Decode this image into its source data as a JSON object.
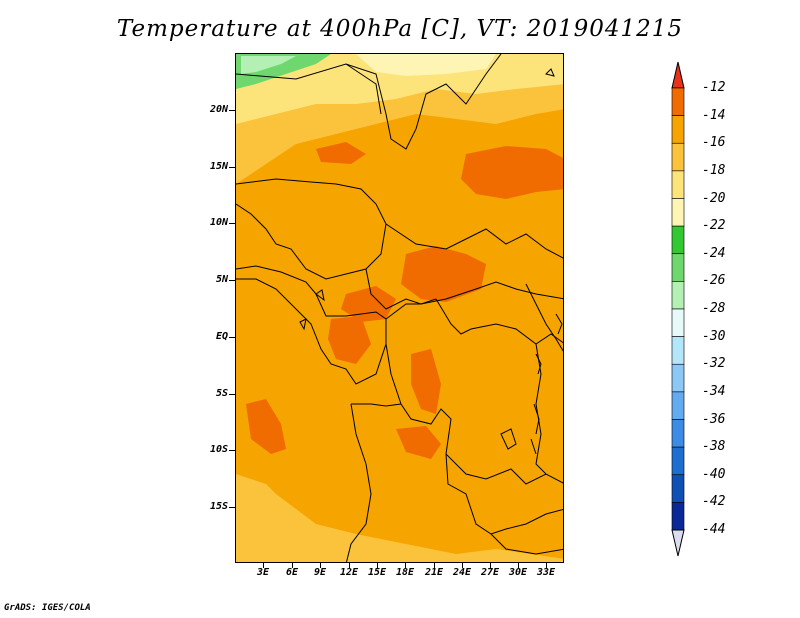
{
  "title": "Temperature at 400hPa [C], VT: 2019041215",
  "footer": "GrADS: IGES/COLA",
  "map": {
    "lat_labels": [
      "20N",
      "15N",
      "10N",
      "5N",
      "EQ",
      "5S",
      "10S",
      "15S"
    ],
    "lon_labels": [
      "3E",
      "6E",
      "9E",
      "12E",
      "15E",
      "18E",
      "21E",
      "24E",
      "27E",
      "30E",
      "33E"
    ],
    "field_colors": {
      "band_-16_-14": "#f6a400",
      "band_-14_-12": "#f06b00",
      "band_-18_-16": "#fbc33c",
      "band_-20_-18": "#fde47a",
      "band_-22_-20": "#fef5b4",
      "band_-26_-24": "#6ed86e",
      "band_-28_-26": "#b4f0b4"
    }
  },
  "colorbar": {
    "labels": [
      "-12",
      "-14",
      "-16",
      "-18",
      "-20",
      "-22",
      "-24",
      "-26",
      "-28",
      "-30",
      "-32",
      "-34",
      "-36",
      "-38",
      "-40",
      "-42",
      "-44"
    ],
    "colors": [
      "#f06b00",
      "#f6a400",
      "#fbc33c",
      "#fde47a",
      "#fef5b4",
      "#32c832",
      "#6ed86e",
      "#b4f0b4",
      "#e6fafa",
      "#b4e6fa",
      "#8cc8f5",
      "#64aaf0",
      "#3c8ce6",
      "#1e6ed2",
      "#0f50b4",
      "#0a2896"
    ],
    "top_cap_color": "#e8321e",
    "bottom_cap_color": "#dcdcf0"
  }
}
